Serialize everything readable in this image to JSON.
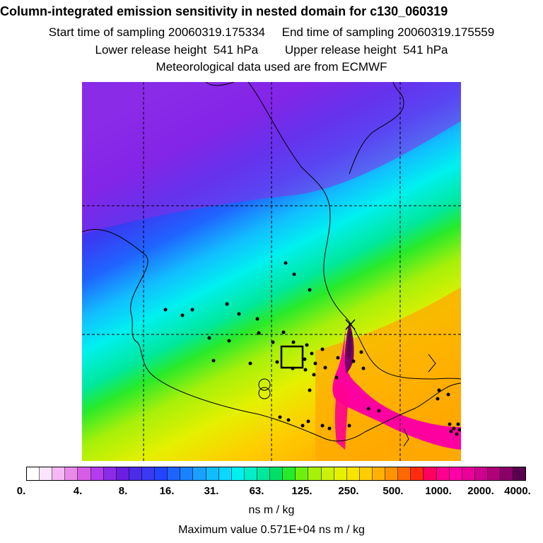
{
  "header": {
    "title": "Column-integrated emission sensitivity in nested domain for c130_060319",
    "start_label": "Start time of sampling 20060319.175334",
    "end_label": "End time of sampling 20060319.175559",
    "lower_label": "Lower release height  541 hPa",
    "upper_label": "Upper release height  541 hPa",
    "met_label": "Meteorological data used are from ECMWF"
  },
  "legend": {
    "ticks": [
      "0.",
      "4.",
      "8.",
      "16.",
      "31.",
      "63.",
      "125.",
      "250.",
      "500.",
      "1000.",
      "2000.",
      "4000."
    ],
    "colors": [
      "#ffffff",
      "#fce4fc",
      "#f5b8f5",
      "#e98ae9",
      "#d55ee5",
      "#b23cee",
      "#8a2be8",
      "#6a1fe0",
      "#4b2de8",
      "#3a3af2",
      "#2246ff",
      "#1f63ff",
      "#1a82ff",
      "#1aa0ff",
      "#12bdff",
      "#0cd7ff",
      "#00f0f0",
      "#00eec8",
      "#00e89c",
      "#00e066",
      "#27ea2a",
      "#6ef00a",
      "#a6f00a",
      "#cdf00a",
      "#e5f000",
      "#f7e400",
      "#ffcc00",
      "#ffb000",
      "#ff9400",
      "#ff6a00",
      "#ff2c10",
      "#ff0060",
      "#ff0090",
      "#ff00a8",
      "#ea0098",
      "#d0008e",
      "#b0007a",
      "#8a0068",
      "#5a0050"
    ],
    "units": "ns m / kg",
    "max_value": "Maximum value  0.571E+04 ns m / kg"
  },
  "map_colors": {
    "violet": "#8a2be8",
    "blue": "#2246ff",
    "cyan": "#00e8f0",
    "green": "#27ea2a",
    "yellow": "#e8f000",
    "orange": "#ffa800",
    "magenta": "#ff00a0",
    "dark": "#7a0068"
  }
}
